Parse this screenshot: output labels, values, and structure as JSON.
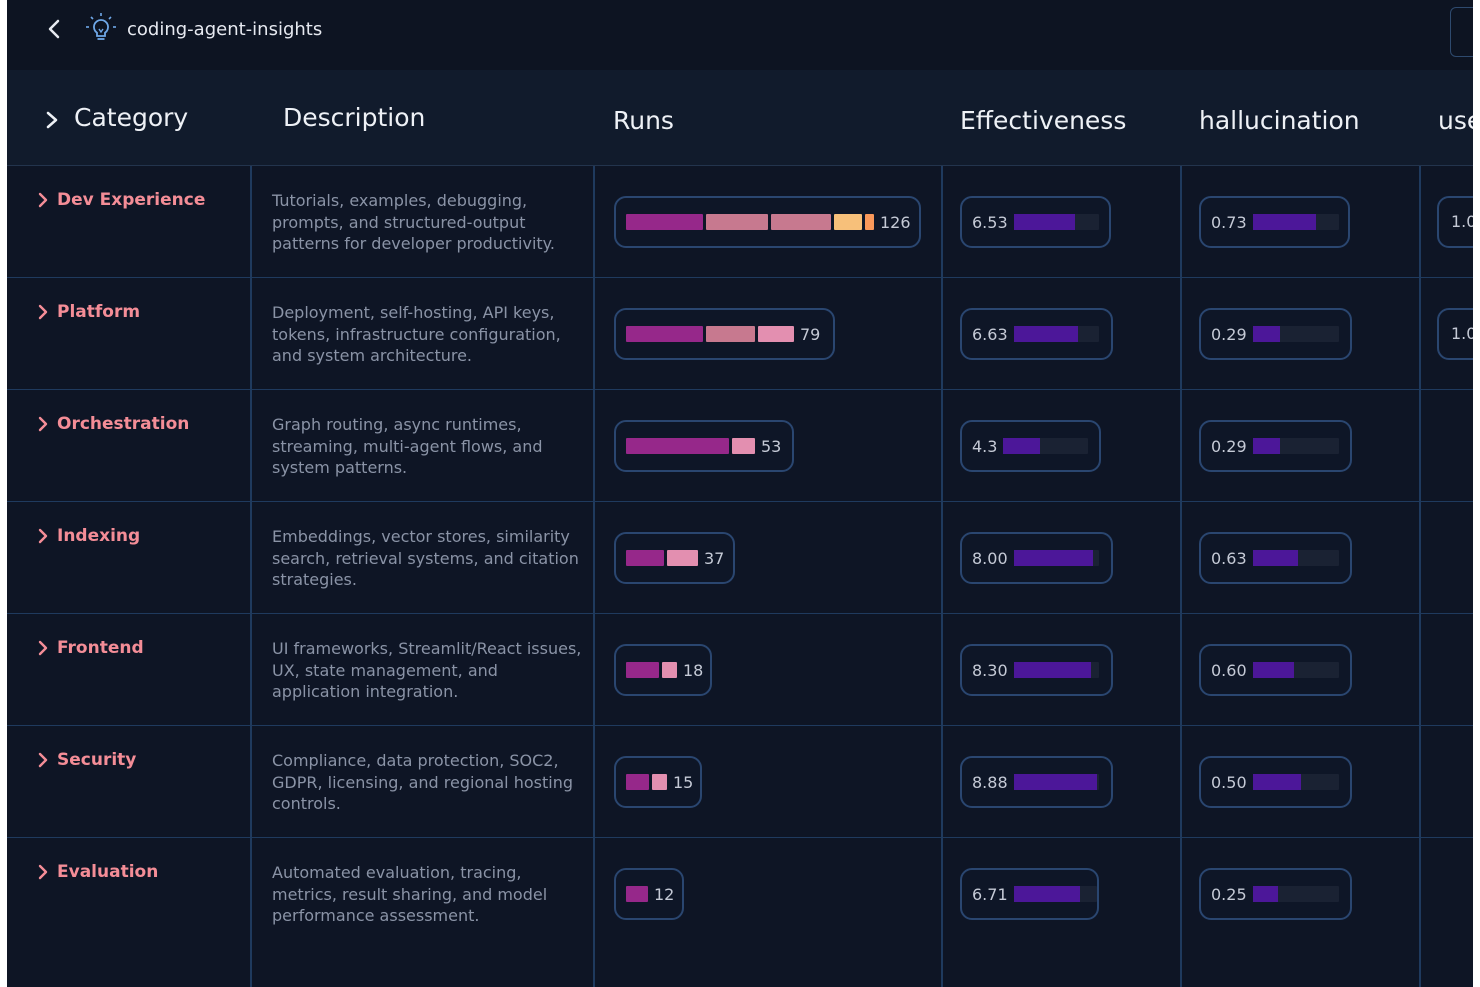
{
  "app": {
    "title": "coding-agent-insights"
  },
  "table": {
    "headers": {
      "category": "Category",
      "description": "Description",
      "runs": "Runs",
      "effectiveness": "Effectiveness",
      "hallucination": "hallucination",
      "used": "use"
    },
    "rows": [
      {
        "category": "Dev Experience",
        "description": "Tutorials, examples, debugging, prompts, and structured-output patterns for developer productivity.",
        "runs": "126",
        "effectiveness": "6.53",
        "effectiveness_fill": 0.72,
        "hallucination": "0.73",
        "hallucination_fill": 0.73,
        "used": "1.0"
      },
      {
        "category": "Platform",
        "description": "Deployment, self-hosting, API keys, tokens, infrastructure configuration, and system architecture.",
        "runs": "79",
        "effectiveness": "6.63",
        "effectiveness_fill": 0.75,
        "hallucination": "0.29",
        "hallucination_fill": 0.31,
        "used": "1.0"
      },
      {
        "category": "Orchestration",
        "description": "Graph routing, async runtimes, streaming, multi-agent flows, and system patterns.",
        "runs": "53",
        "effectiveness": "4.3",
        "effectiveness_fill": 0.44,
        "hallucination": "0.29",
        "hallucination_fill": 0.31,
        "used": ""
      },
      {
        "category": "Indexing",
        "description": "Embeddings, vector stores, similarity search, retrieval systems, and citation strategies.",
        "runs": "37",
        "effectiveness": "8.00",
        "effectiveness_fill": 0.93,
        "hallucination": "0.63",
        "hallucination_fill": 0.52,
        "used": ""
      },
      {
        "category": "Frontend",
        "description": "UI frameworks, Streamlit/React issues, UX, state management, and application integration.",
        "runs": "18",
        "effectiveness": "8.30",
        "effectiveness_fill": 0.9,
        "hallucination": "0.60",
        "hallucination_fill": 0.48,
        "used": ""
      },
      {
        "category": "Security",
        "description": "Compliance, data protection, SOC2, GDPR, licensing, and regional hosting controls.",
        "runs": "15",
        "effectiveness": "8.88",
        "effectiveness_fill": 0.98,
        "hallucination": "0.50",
        "hallucination_fill": 0.56,
        "used": ""
      },
      {
        "category": "Evaluation",
        "description": "Automated evaluation, tracing, metrics, result sharing, and model performance assessment.",
        "runs": "12",
        "effectiveness": "6.71",
        "effectiveness_fill": 0.78,
        "hallucination": "0.25",
        "hallucination_fill": 0.29,
        "used": ""
      }
    ]
  },
  "icons": {
    "back": "chevron-left-icon",
    "logo": "lightbulb-icon",
    "expand": "chevron-right-icon"
  },
  "colors": {
    "accent_category": "#f48d97",
    "bar_dark_magenta": "#96288a",
    "bar_pink": "#c7798f",
    "bar_light_pink": "#e38fb0",
    "bar_peach": "#f7c07a",
    "bar_orange": "#f9985a",
    "metric_fill": "#4c1799"
  }
}
